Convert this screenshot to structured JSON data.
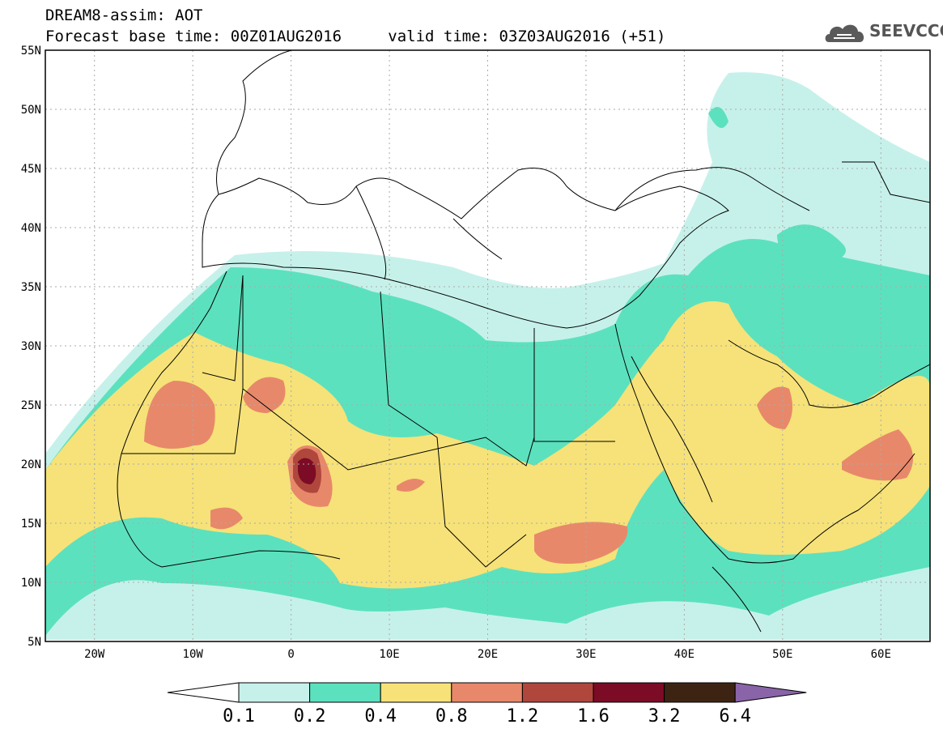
{
  "header": {
    "title_line1": "DREAM8-assim: AOT",
    "base_time_label": "Forecast base time: 00Z01AUG2016",
    "valid_time_label": "valid time: 03Z03AUG2016 (+51)"
  },
  "logo": {
    "text": "SEEVCCC",
    "icon": "cloud-icon",
    "color": "#555555"
  },
  "map": {
    "lon_range": [
      -25,
      65
    ],
    "lat_range": [
      5,
      55
    ],
    "lat_labels": [
      "55N",
      "50N",
      "45N",
      "40N",
      "35N",
      "30N",
      "25N",
      "20N",
      "15N",
      "10N",
      "5N"
    ],
    "lon_labels": [
      "20W",
      "10W",
      "0",
      "10E",
      "20E",
      "30E",
      "40E",
      "50E",
      "60E"
    ],
    "grid": "dotted"
  },
  "colorbar": {
    "levels": [
      "0.1",
      "0.2",
      "0.4",
      "0.8",
      "1.2",
      "1.6",
      "3.2",
      "6.4"
    ],
    "colors": [
      "#c6f1ea",
      "#5ce1be",
      "#f6e278",
      "#e8886a",
      "#b0473d",
      "#7c0b25",
      "#3d2412"
    ],
    "under_color": "#ffffff",
    "over_color": "#8a64a8"
  }
}
